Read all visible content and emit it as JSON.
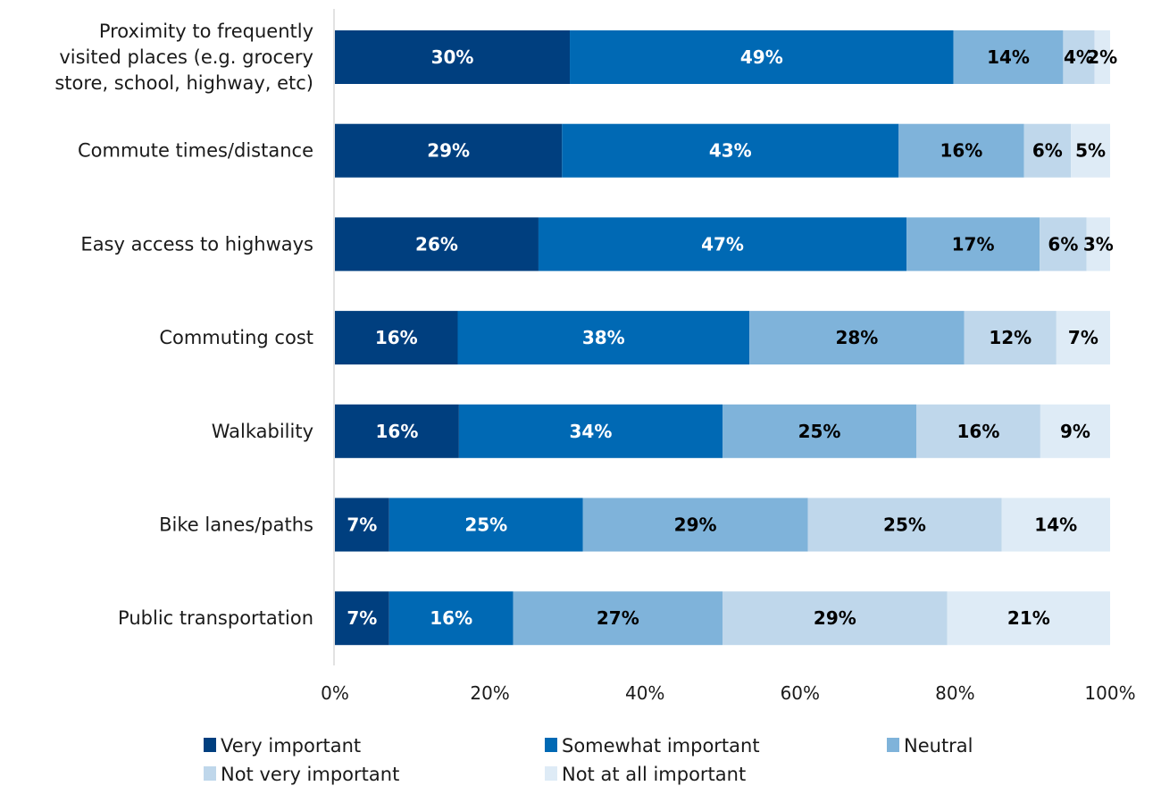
{
  "chart_data": {
    "type": "bar",
    "orientation": "horizontal",
    "stacked": true,
    "title": "",
    "xlabel": "",
    "ylabel": "",
    "xlim": [
      0,
      100
    ],
    "x_ticks": [
      "0%",
      "20%",
      "40%",
      "60%",
      "80%",
      "100%"
    ],
    "grid": false,
    "legend_position": "bottom",
    "categories": [
      [
        "Proximity to frequently",
        "visited places (e.g. grocery",
        "store, school, highway, etc)"
      ],
      [
        "Commute times/distance"
      ],
      [
        "Easy access to highways"
      ],
      [
        "Commuting cost"
      ],
      [
        "Walkability"
      ],
      [
        "Bike lanes/paths"
      ],
      [
        "Public transportation"
      ]
    ],
    "series": [
      {
        "name": "Very important",
        "color": "#003F7F",
        "label_color": "#ffffff",
        "values": [
          30,
          29,
          26,
          16,
          16,
          7,
          7
        ]
      },
      {
        "name": "Somewhat important",
        "color": "#0069B4",
        "label_color": "#ffffff",
        "values": [
          49,
          43,
          47,
          38,
          34,
          25,
          16
        ]
      },
      {
        "name": "Neutral",
        "color": "#7FB3DA",
        "label_color": "#000000",
        "values": [
          14,
          16,
          17,
          28,
          25,
          29,
          27
        ]
      },
      {
        "name": "Not very important",
        "color": "#BFD7EB",
        "label_color": "#000000",
        "values": [
          4,
          6,
          6,
          12,
          16,
          25,
          29
        ]
      },
      {
        "name": "Not at all important",
        "color": "#DEEBF6",
        "label_color": "#000000",
        "values": [
          2,
          5,
          3,
          7,
          9,
          14,
          21
        ]
      }
    ],
    "value_suffix": "%"
  }
}
